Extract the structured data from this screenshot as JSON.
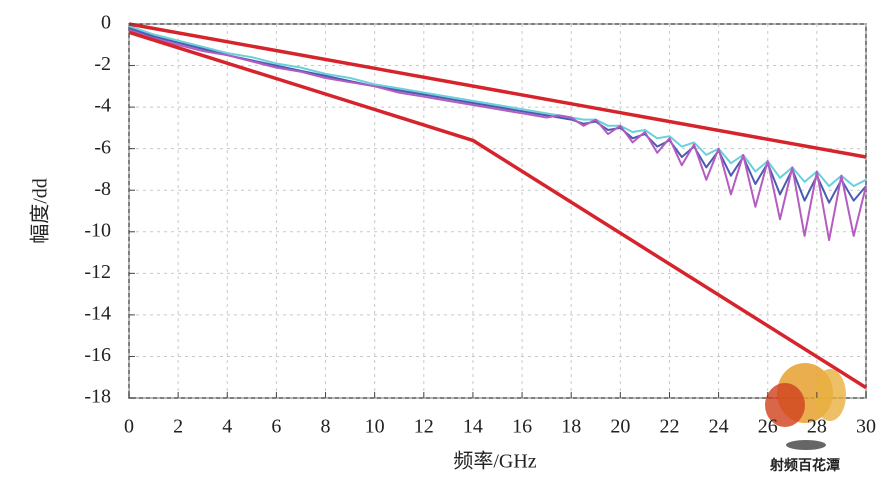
{
  "chart_data": {
    "type": "line",
    "xlabel": "频率/GHz",
    "ylabel": "幅度/dd",
    "watermark": "射频百花潭",
    "xlim": [
      0,
      30
    ],
    "ylim": [
      -18,
      0
    ],
    "xticks": [
      0,
      2,
      4,
      6,
      8,
      10,
      12,
      14,
      16,
      18,
      20,
      22,
      24,
      26,
      28,
      30
    ],
    "yticks": [
      0,
      -2,
      -4,
      -6,
      -8,
      -10,
      -12,
      -14,
      -16,
      -18
    ],
    "grid": true,
    "series": [
      {
        "color": "#d6242c",
        "x": [
          0,
          30
        ],
        "values": [
          0,
          -6.4
        ]
      },
      {
        "color": "#d6242c",
        "x": [
          0,
          14,
          30
        ],
        "values": [
          -0.4,
          -5.6,
          -17.5
        ]
      },
      {
        "color": "#6ad0da",
        "x": [
          0,
          1,
          2,
          3,
          4,
          5,
          6,
          7,
          8,
          9,
          10,
          11,
          12,
          13,
          14,
          15,
          16,
          17,
          17.5,
          18,
          18.5,
          19,
          19.5,
          20,
          20.5,
          21,
          21.5,
          22,
          22.5,
          23,
          23.5,
          24,
          24.5,
          25,
          25.5,
          26,
          26.5,
          27,
          27.5,
          28,
          28.5,
          29,
          29.5,
          30
        ],
        "values": [
          -0.1,
          -0.5,
          -0.8,
          -1.1,
          -1.4,
          -1.6,
          -1.9,
          -2.1,
          -2.4,
          -2.6,
          -2.9,
          -3.1,
          -3.3,
          -3.5,
          -3.7,
          -3.9,
          -4.1,
          -4.3,
          -4.4,
          -4.5,
          -4.6,
          -4.6,
          -4.9,
          -4.9,
          -5.2,
          -5.1,
          -5.5,
          -5.4,
          -5.9,
          -5.7,
          -6.3,
          -6.0,
          -6.7,
          -6.3,
          -7.1,
          -6.6,
          -7.4,
          -6.9,
          -7.6,
          -7.1,
          -7.8,
          -7.3,
          -7.8,
          -7.5
        ]
      },
      {
        "color": "#4a5bb0",
        "x": [
          0,
          1,
          2,
          3,
          4,
          5,
          6,
          7,
          8,
          9,
          10,
          11,
          12,
          13,
          14,
          15,
          16,
          17,
          17.5,
          18,
          18.5,
          19,
          19.5,
          20,
          20.5,
          21,
          21.5,
          22,
          22.5,
          23,
          23.5,
          24,
          24.5,
          25,
          25.5,
          26,
          26.5,
          27,
          27.5,
          28,
          28.5,
          29,
          29.5,
          30
        ],
        "values": [
          -0.2,
          -0.6,
          -0.9,
          -1.2,
          -1.5,
          -1.75,
          -2.0,
          -2.25,
          -2.5,
          -2.75,
          -3.0,
          -3.2,
          -3.4,
          -3.6,
          -3.8,
          -4.0,
          -4.2,
          -4.4,
          -4.5,
          -4.6,
          -4.8,
          -4.7,
          -5.1,
          -5.0,
          -5.5,
          -5.3,
          -5.9,
          -5.6,
          -6.4,
          -5.9,
          -6.9,
          -6.1,
          -7.3,
          -6.4,
          -7.7,
          -6.7,
          -8.2,
          -7.0,
          -8.5,
          -7.3,
          -8.6,
          -7.5,
          -8.5,
          -7.8
        ]
      },
      {
        "color": "#b45cc0",
        "x": [
          0,
          1,
          2,
          3,
          4,
          5,
          6,
          7,
          8,
          9,
          10,
          11,
          12,
          13,
          14,
          15,
          16,
          17,
          17.5,
          18,
          18.5,
          19,
          19.5,
          20,
          20.5,
          21,
          21.5,
          22,
          22.5,
          23,
          23.5,
          24,
          24.5,
          25,
          25.5,
          26,
          26.5,
          27,
          27.5,
          28,
          28.5,
          29,
          29.5,
          30
        ],
        "values": [
          -0.3,
          -0.7,
          -1.0,
          -1.3,
          -1.5,
          -1.8,
          -2.1,
          -2.3,
          -2.6,
          -2.8,
          -3.0,
          -3.3,
          -3.5,
          -3.7,
          -3.9,
          -4.1,
          -4.3,
          -4.5,
          -4.4,
          -4.5,
          -4.9,
          -4.6,
          -5.3,
          -4.9,
          -5.7,
          -5.2,
          -6.2,
          -5.5,
          -6.8,
          -5.8,
          -7.5,
          -6.0,
          -8.2,
          -6.3,
          -8.8,
          -6.6,
          -9.4,
          -6.9,
          -10.2,
          -7.1,
          -10.4,
          -7.3,
          -10.2,
          -7.8
        ]
      }
    ]
  }
}
